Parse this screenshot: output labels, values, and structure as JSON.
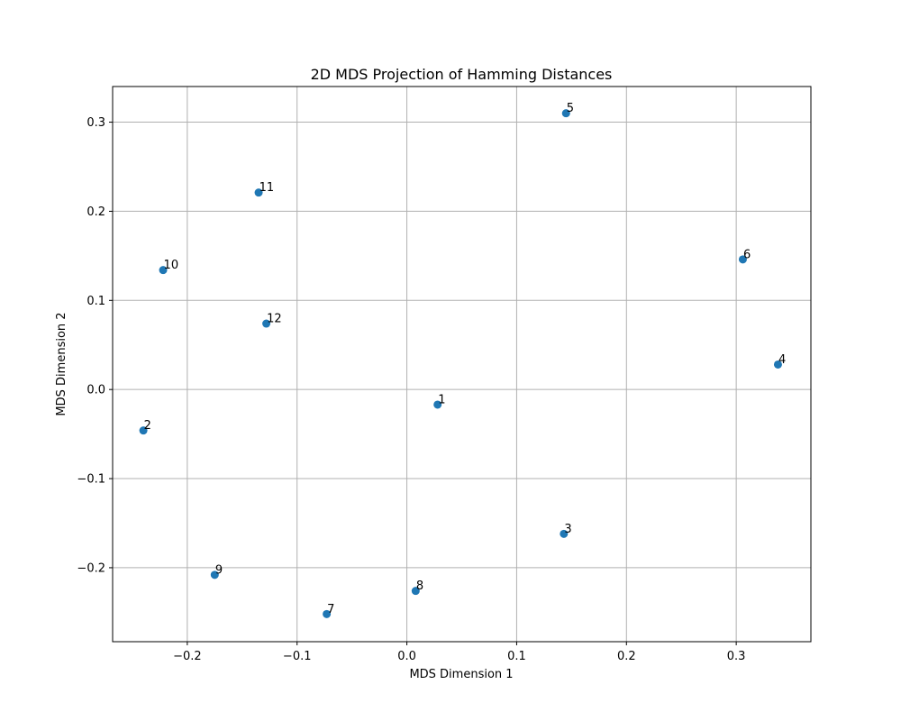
{
  "chart_data": {
    "type": "scatter",
    "title": "2D MDS Projection of Hamming Distances",
    "xlabel": "MDS Dimension 1",
    "ylabel": "MDS Dimension 2",
    "xlim": [
      -0.268,
      0.368
    ],
    "ylim": [
      -0.283,
      0.34
    ],
    "xticks": [
      -0.2,
      -0.1,
      0.0,
      0.1,
      0.2,
      0.3
    ],
    "xtick_labels": [
      "−0.2",
      "−0.1",
      "0.0",
      "0.1",
      "0.2",
      "0.3"
    ],
    "yticks": [
      -0.2,
      -0.1,
      0.0,
      0.1,
      0.2,
      0.3
    ],
    "ytick_labels": [
      "−0.2",
      "−0.1",
      "0.0",
      "0.1",
      "0.2",
      "0.3"
    ],
    "grid": true,
    "marker_color": "#1f77b4",
    "points": [
      {
        "label": "1",
        "x": 0.028,
        "y": -0.017
      },
      {
        "label": "2",
        "x": -0.24,
        "y": -0.046
      },
      {
        "label": "3",
        "x": 0.143,
        "y": -0.162
      },
      {
        "label": "4",
        "x": 0.338,
        "y": 0.028
      },
      {
        "label": "5",
        "x": 0.145,
        "y": 0.31
      },
      {
        "label": "6",
        "x": 0.306,
        "y": 0.146
      },
      {
        "label": "7",
        "x": -0.073,
        "y": -0.252
      },
      {
        "label": "8",
        "x": 0.008,
        "y": -0.226
      },
      {
        "label": "9",
        "x": -0.175,
        "y": -0.208
      },
      {
        "label": "10",
        "x": -0.222,
        "y": 0.134
      },
      {
        "label": "11",
        "x": -0.135,
        "y": 0.221
      },
      {
        "label": "12",
        "x": -0.128,
        "y": 0.074
      }
    ]
  }
}
